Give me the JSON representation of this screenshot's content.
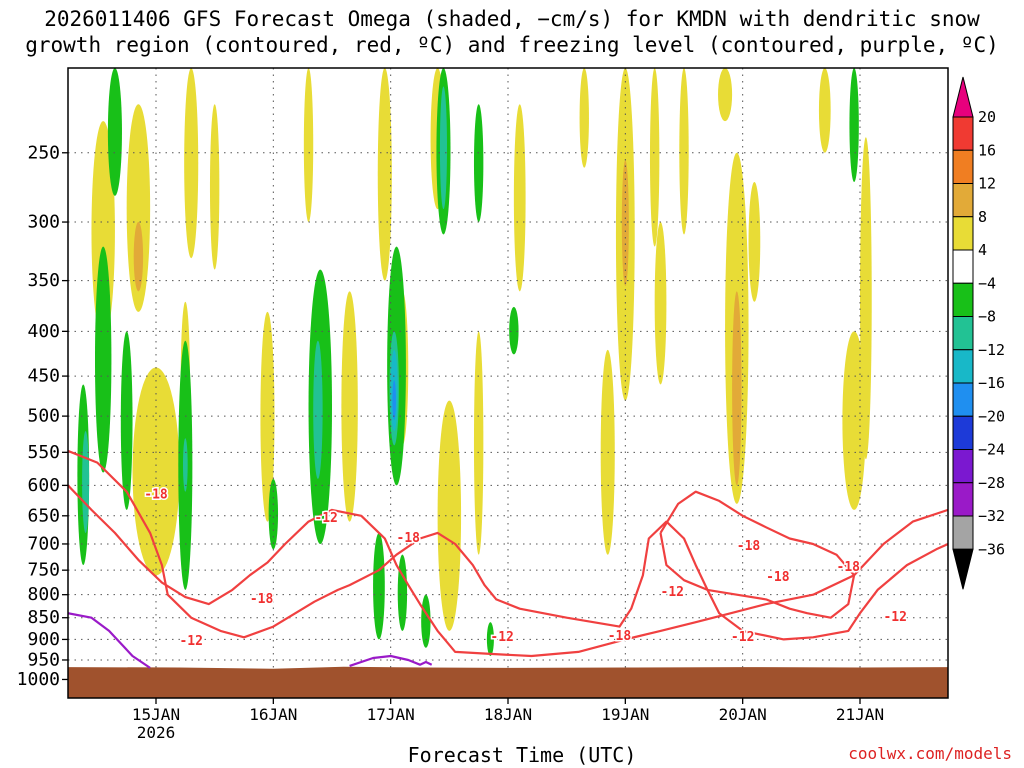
{
  "title_lines": [
    "2026011406 GFS Forecast Omega (shaded, −cm/s) for KMDN with dendritic snow",
    "growth region (contoured, red, ºC) and freezing level (contoured, purple, ºC)"
  ],
  "xlabel": "Forecast Time (UTC)",
  "credit": "coolwx.com/models",
  "chart_data": {
    "type": "heatmap",
    "x_range_days": [
      14.25,
      21.75
    ],
    "x_ticks": [
      {
        "value": 15,
        "label": "15JAN",
        "sublabel": "2026"
      },
      {
        "value": 16,
        "label": "16JAN",
        "sublabel": ""
      },
      {
        "value": 17,
        "label": "17JAN",
        "sublabel": ""
      },
      {
        "value": 18,
        "label": "18JAN",
        "sublabel": ""
      },
      {
        "value": 19,
        "label": "19JAN",
        "sublabel": ""
      },
      {
        "value": 20,
        "label": "20JAN",
        "sublabel": ""
      },
      {
        "value": 21,
        "label": "21JAN",
        "sublabel": ""
      }
    ],
    "y_scale": "log-pressure",
    "y_range_hpa": [
      200,
      1050
    ],
    "y_ticks": [
      250,
      300,
      350,
      400,
      450,
      500,
      550,
      600,
      650,
      700,
      750,
      800,
      850,
      900,
      950,
      1000
    ],
    "grid": true,
    "ground_color": "#a0522d",
    "surface_pressure": [
      [
        14.25,
        968
      ],
      [
        15.2,
        969
      ],
      [
        16.0,
        972
      ],
      [
        16.6,
        967
      ],
      [
        17.3,
        969
      ],
      [
        18.0,
        970
      ],
      [
        19.0,
        969
      ],
      [
        20.0,
        968
      ],
      [
        21.0,
        969
      ],
      [
        21.75,
        968
      ]
    ],
    "colorbar": {
      "labels": [
        "20",
        "16",
        "12",
        "8",
        "4",
        "−4",
        "−8",
        "−12",
        "−16",
        "−20",
        "−24",
        "−28",
        "−32",
        "−36"
      ],
      "colors": [
        "#e7007d",
        "#f03a32",
        "#f07e22",
        "#e2aa38",
        "#e8dc36",
        "#ffffff",
        "#18c018",
        "#22c294",
        "#18b8c8",
        "#1f8ff0",
        "#1d3ad8",
        "#7b18d0",
        "#9a1ac8",
        "#a4a4a4",
        "#000000"
      ]
    },
    "omega_regions": [
      {
        "level": 4,
        "day": 14.55,
        "p": 320,
        "dd": 0.1,
        "dp": 90
      },
      {
        "level": 4,
        "day": 14.85,
        "p": 300,
        "dd": 0.1,
        "dp": 80
      },
      {
        "level": 8,
        "day": 14.85,
        "p": 330,
        "dd": 0.04,
        "dp": 30
      },
      {
        "level": 4,
        "day": 15.3,
        "p": 260,
        "dd": 0.06,
        "dp": 70
      },
      {
        "level": 4,
        "day": 15.0,
        "p": 600,
        "dd": 0.2,
        "dp": 160
      },
      {
        "level": 4,
        "day": 15.25,
        "p": 470,
        "dd": 0.04,
        "dp": 100
      },
      {
        "level": 4,
        "day": 15.5,
        "p": 280,
        "dd": 0.04,
        "dp": 60
      },
      {
        "level": 4,
        "day": 15.95,
        "p": 520,
        "dd": 0.06,
        "dp": 140
      },
      {
        "level": 4,
        "day": 16.3,
        "p": 250,
        "dd": 0.04,
        "dp": 50
      },
      {
        "level": 4,
        "day": 16.95,
        "p": 260,
        "dd": 0.06,
        "dp": 90
      },
      {
        "level": 4,
        "day": 16.65,
        "p": 510,
        "dd": 0.07,
        "dp": 150
      },
      {
        "level": 4,
        "day": 17.1,
        "p": 450,
        "dd": 0.05,
        "dp": 90
      },
      {
        "level": 4,
        "day": 17.4,
        "p": 230,
        "dd": 0.06,
        "dp": 60
      },
      {
        "level": 4,
        "day": 17.5,
        "p": 680,
        "dd": 0.1,
        "dp": 200
      },
      {
        "level": 4,
        "day": 17.75,
        "p": 560,
        "dd": 0.04,
        "dp": 160
      },
      {
        "level": 4,
        "day": 18.1,
        "p": 290,
        "dd": 0.05,
        "dp": 70
      },
      {
        "level": 4,
        "day": 18.65,
        "p": 230,
        "dd": 0.04,
        "dp": 30
      },
      {
        "level": 4,
        "day": 18.85,
        "p": 570,
        "dd": 0.06,
        "dp": 150
      },
      {
        "level": 4,
        "day": 19.0,
        "p": 330,
        "dd": 0.08,
        "dp": 150
      },
      {
        "level": 8,
        "day": 19.0,
        "p": 305,
        "dd": 0.03,
        "dp": 50
      },
      {
        "level": 4,
        "day": 19.25,
        "p": 260,
        "dd": 0.04,
        "dp": 60
      },
      {
        "level": 4,
        "day": 19.3,
        "p": 380,
        "dd": 0.05,
        "dp": 80
      },
      {
        "level": 4,
        "day": 19.5,
        "p": 250,
        "dd": 0.04,
        "dp": 60
      },
      {
        "level": 4,
        "day": 19.85,
        "p": 210,
        "dd": 0.06,
        "dp": 20
      },
      {
        "level": 4,
        "day": 19.95,
        "p": 440,
        "dd": 0.1,
        "dp": 190
      },
      {
        "level": 8,
        "day": 19.95,
        "p": 480,
        "dd": 0.04,
        "dp": 120
      },
      {
        "level": 4,
        "day": 20.1,
        "p": 320,
        "dd": 0.05,
        "dp": 50
      },
      {
        "level": 4,
        "day": 20.95,
        "p": 520,
        "dd": 0.1,
        "dp": 120
      },
      {
        "level": 4,
        "day": 21.05,
        "p": 400,
        "dd": 0.05,
        "dp": 160
      },
      {
        "level": 4,
        "day": 20.7,
        "p": 220,
        "dd": 0.05,
        "dp": 30
      },
      {
        "level": -4,
        "day": 14.55,
        "p": 450,
        "dd": 0.07,
        "dp": 130
      },
      {
        "level": -4,
        "day": 14.75,
        "p": 520,
        "dd": 0.05,
        "dp": 120
      },
      {
        "level": -4,
        "day": 14.38,
        "p": 600,
        "dd": 0.05,
        "dp": 140
      },
      {
        "level": -4,
        "day": 14.65,
        "p": 240,
        "dd": 0.06,
        "dp": 40
      },
      {
        "level": -4,
        "day": 15.25,
        "p": 600,
        "dd": 0.06,
        "dp": 190
      },
      {
        "level": -4,
        "day": 16.4,
        "p": 520,
        "dd": 0.1,
        "dp": 180
      },
      {
        "level": -4,
        "day": 16.0,
        "p": 650,
        "dd": 0.04,
        "dp": 60
      },
      {
        "level": -4,
        "day": 16.9,
        "p": 790,
        "dd": 0.05,
        "dp": 110
      },
      {
        "level": -4,
        "day": 17.05,
        "p": 460,
        "dd": 0.08,
        "dp": 140
      },
      {
        "level": -4,
        "day": 17.1,
        "p": 800,
        "dd": 0.04,
        "dp": 80
      },
      {
        "level": -4,
        "day": 17.3,
        "p": 860,
        "dd": 0.04,
        "dp": 60
      },
      {
        "level": -4,
        "day": 17.45,
        "p": 240,
        "dd": 0.06,
        "dp": 70
      },
      {
        "level": -4,
        "day": 17.75,
        "p": 260,
        "dd": 0.04,
        "dp": 40
      },
      {
        "level": -4,
        "day": 18.05,
        "p": 400,
        "dd": 0.04,
        "dp": 25
      },
      {
        "level": -4,
        "day": 20.95,
        "p": 230,
        "dd": 0.04,
        "dp": 40
      },
      {
        "level": -4,
        "day": 17.85,
        "p": 900,
        "dd": 0.03,
        "dp": 40
      },
      {
        "level": -8,
        "day": 14.4,
        "p": 600,
        "dd": 0.03,
        "dp": 80
      },
      {
        "level": -8,
        "day": 15.25,
        "p": 570,
        "dd": 0.02,
        "dp": 40
      },
      {
        "level": -8,
        "day": 16.38,
        "p": 500,
        "dd": 0.04,
        "dp": 90
      },
      {
        "level": -8,
        "day": 17.03,
        "p": 470,
        "dd": 0.04,
        "dp": 70
      },
      {
        "level": -8,
        "day": 17.45,
        "p": 250,
        "dd": 0.03,
        "dp": 40
      },
      {
        "level": -12,
        "day": 17.03,
        "p": 470,
        "dd": 0.03,
        "dp": 50
      },
      {
        "level": -16,
        "day": 17.03,
        "p": 480,
        "dd": 0.015,
        "dp": 25
      }
    ],
    "dgz_contours": [
      {
        "label": "-12",
        "points": [
          [
            14.25,
            548
          ],
          [
            14.5,
            565
          ],
          [
            14.75,
            610
          ],
          [
            14.95,
            680
          ],
          [
            15.05,
            740
          ],
          [
            15.1,
            800
          ],
          [
            15.3,
            850
          ],
          [
            15.55,
            880
          ],
          [
            15.75,
            895
          ],
          [
            16.0,
            870
          ],
          [
            16.35,
            815
          ],
          [
            16.55,
            790
          ],
          [
            16.65,
            780
          ],
          [
            16.9,
            750
          ],
          [
            17.05,
            720
          ],
          [
            17.25,
            690
          ],
          [
            17.4,
            680
          ],
          [
            17.55,
            700
          ],
          [
            17.7,
            740
          ],
          [
            17.8,
            780
          ],
          [
            17.9,
            810
          ],
          [
            18.1,
            830
          ],
          [
            18.5,
            850
          ],
          [
            18.95,
            870
          ],
          [
            19.05,
            830
          ],
          [
            19.15,
            760
          ],
          [
            19.2,
            690
          ],
          [
            19.35,
            660
          ],
          [
            19.5,
            690
          ],
          [
            19.6,
            740
          ],
          [
            19.7,
            790
          ],
          [
            19.8,
            840
          ],
          [
            20.0,
            880
          ],
          [
            20.35,
            900
          ],
          [
            20.6,
            895
          ],
          [
            20.9,
            880
          ],
          [
            21.0,
            840
          ],
          [
            21.15,
            790
          ],
          [
            21.4,
            740
          ],
          [
            21.65,
            710
          ],
          [
            21.75,
            700
          ]
        ]
      },
      {
        "label": "-18",
        "points": [
          [
            14.25,
            600
          ],
          [
            14.45,
            640
          ],
          [
            14.65,
            680
          ],
          [
            14.85,
            730
          ],
          [
            15.05,
            775
          ],
          [
            15.25,
            805
          ],
          [
            15.45,
            820
          ],
          [
            15.65,
            790
          ],
          [
            15.8,
            760
          ],
          [
            15.95,
            735
          ],
          [
            16.1,
            700
          ],
          [
            16.3,
            660
          ],
          [
            16.5,
            640
          ],
          [
            16.75,
            650
          ],
          [
            16.95,
            690
          ],
          [
            17.05,
            740
          ],
          [
            17.15,
            780
          ],
          [
            17.25,
            820
          ],
          [
            17.4,
            880
          ],
          [
            17.55,
            930
          ],
          [
            17.85,
            935
          ],
          [
            18.2,
            940
          ],
          [
            18.6,
            930
          ],
          [
            19.0,
            900
          ],
          [
            19.3,
            880
          ],
          [
            19.6,
            860
          ],
          [
            19.9,
            840
          ],
          [
            20.2,
            820
          ],
          [
            20.6,
            800
          ],
          [
            20.95,
            760
          ],
          [
            21.2,
            700
          ],
          [
            21.45,
            660
          ],
          [
            21.75,
            640
          ]
        ]
      },
      {
        "label": "-18",
        "points": [
          [
            19.3,
            680
          ],
          [
            19.45,
            630
          ],
          [
            19.6,
            610
          ],
          [
            19.8,
            625
          ],
          [
            20.0,
            650
          ],
          [
            20.2,
            670
          ],
          [
            20.4,
            690
          ],
          [
            20.6,
            700
          ],
          [
            20.8,
            720
          ],
          [
            20.95,
            760
          ],
          [
            20.9,
            820
          ],
          [
            20.75,
            850
          ],
          [
            20.55,
            840
          ],
          [
            20.4,
            830
          ],
          [
            20.2,
            810
          ],
          [
            19.95,
            800
          ],
          [
            19.7,
            790
          ],
          [
            19.5,
            770
          ],
          [
            19.35,
            740
          ],
          [
            19.3,
            680
          ]
        ]
      }
    ],
    "dgz_labels": [
      {
        "text": "-18",
        "day": 15.0,
        "p": 615
      },
      {
        "text": "-18",
        "day": 15.9,
        "p": 810
      },
      {
        "text": "-12",
        "day": 15.3,
        "p": 905
      },
      {
        "text": "-12",
        "day": 16.45,
        "p": 655
      },
      {
        "text": "-18",
        "day": 17.15,
        "p": 690
      },
      {
        "text": "-12",
        "day": 17.95,
        "p": 895
      },
      {
        "text": "-18",
        "day": 18.95,
        "p": 893
      },
      {
        "text": "-12",
        "day": 19.4,
        "p": 795
      },
      {
        "text": "-18",
        "day": 20.05,
        "p": 705
      },
      {
        "text": "-12",
        "day": 20.0,
        "p": 895
      },
      {
        "text": "-18",
        "day": 20.3,
        "p": 765
      },
      {
        "text": "-18",
        "day": 20.9,
        "p": 745
      },
      {
        "text": "-12",
        "day": 21.3,
        "p": 850
      }
    ],
    "freezing_contours": [
      {
        "points": [
          [
            14.25,
            840
          ],
          [
            14.45,
            850
          ],
          [
            14.6,
            880
          ],
          [
            14.8,
            940
          ],
          [
            14.95,
            970
          ]
        ]
      },
      {
        "points": [
          [
            16.65,
            965
          ],
          [
            16.85,
            945
          ],
          [
            17.0,
            940
          ],
          [
            17.15,
            950
          ],
          [
            17.25,
            962
          ],
          [
            17.3,
            955
          ],
          [
            17.35,
            962
          ]
        ]
      }
    ]
  }
}
